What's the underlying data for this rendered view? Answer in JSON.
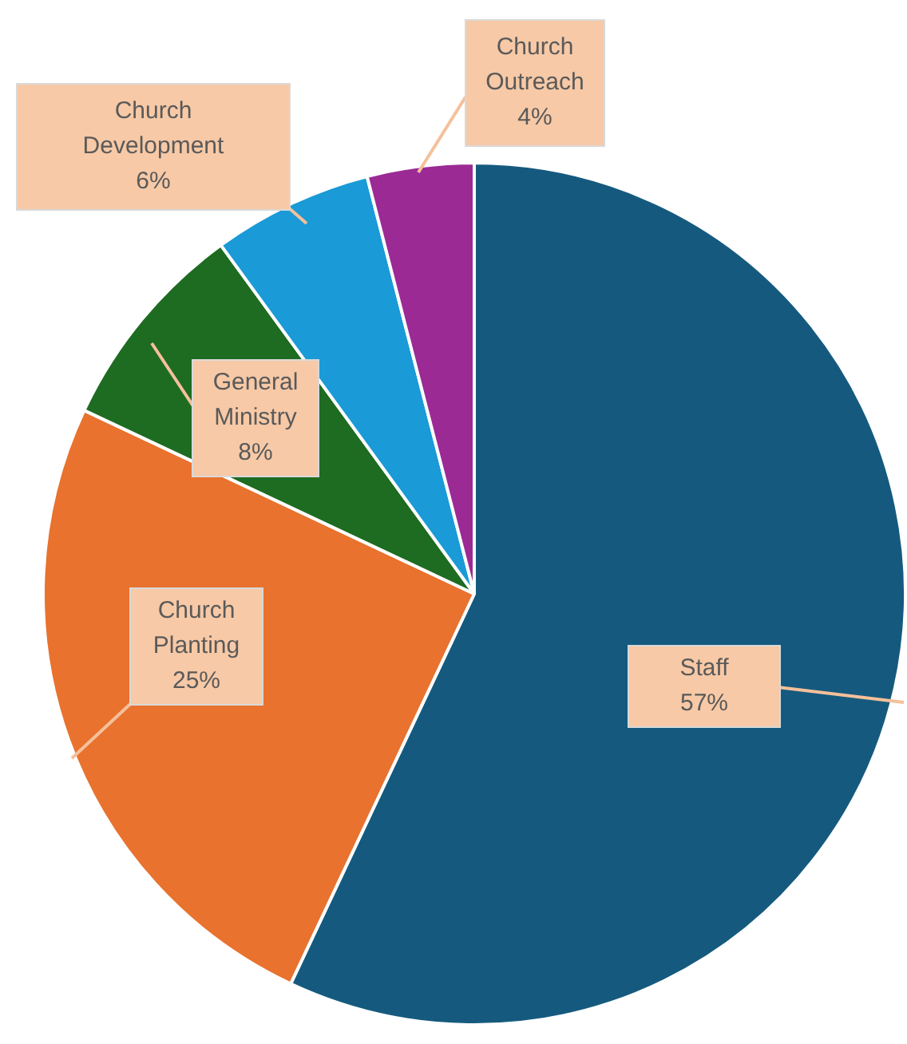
{
  "chart_data": {
    "type": "pie",
    "categories": [
      "Staff",
      "Church Planting",
      "General Ministry",
      "Church Development",
      "Church Outreach"
    ],
    "values": [
      57,
      25,
      8,
      6,
      4
    ],
    "colors": [
      "#155a7e",
      "#e8722e",
      "#1e6b22",
      "#1a9ad6",
      "#9b2a95"
    ],
    "value_labels": [
      "57%",
      "25%",
      "8%",
      "6%",
      "4%"
    ],
    "legend": false
  }
}
